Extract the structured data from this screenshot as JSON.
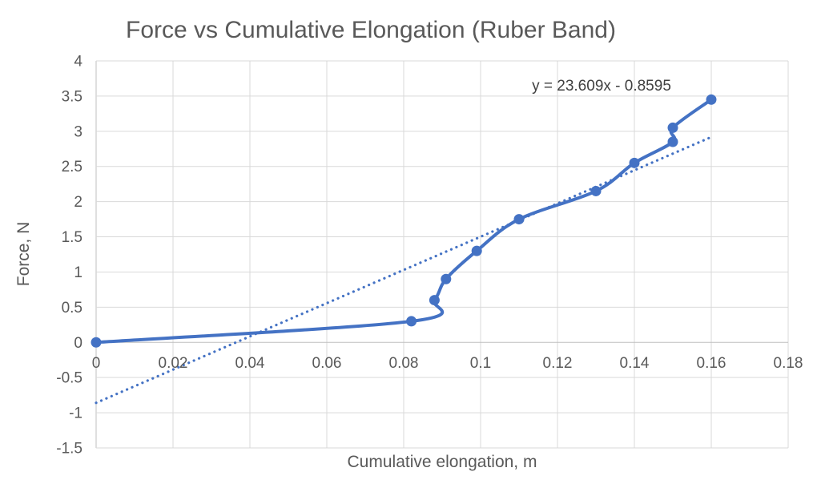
{
  "chart_data": {
    "type": "line",
    "title": "Force vs Cumulative Elongation (Ruber Band)",
    "xlabel": "Cumulative elongation, m",
    "ylabel": "Force, N",
    "xlim": [
      0,
      0.18
    ],
    "ylim": [
      -1.5,
      4
    ],
    "grid": true,
    "legend": false,
    "x_ticks": {
      "values": [
        0,
        0.02,
        0.04,
        0.06,
        0.08,
        0.1,
        0.12,
        0.14,
        0.16,
        0.18
      ],
      "labels": [
        "0",
        "0.02",
        "0.04",
        "0.06",
        "0.08",
        "0.1",
        "0.12",
        "0.14",
        "0.16",
        "0.18"
      ]
    },
    "y_ticks": {
      "values": [
        4,
        3.5,
        3,
        2.5,
        2,
        1.5,
        1,
        0.5,
        0,
        -0.5,
        -1,
        -1.5
      ],
      "labels": [
        "4",
        "3.5",
        "3",
        "2.5",
        "2",
        "1.5",
        "1",
        "0.5",
        "0",
        "-0.5",
        "-1",
        "-1.5"
      ]
    },
    "series": [
      {
        "name": "Force vs cumulative elongation",
        "x": [
          0,
          0.082,
          0.088,
          0.091,
          0.099,
          0.11,
          0.13,
          0.14,
          0.15,
          0.15,
          0.16
        ],
        "y": [
          0,
          0.3,
          0.6,
          0.9,
          1.3,
          1.75,
          2.15,
          2.55,
          2.85,
          3.05,
          3.45
        ],
        "smoothed": true,
        "marker": "circle"
      }
    ],
    "trendline": {
      "equation_label": "y = 23.609x - 0.8595",
      "slope": 23.609,
      "intercept": -0.8595,
      "x_range": [
        0,
        0.16
      ],
      "style": "dotted"
    },
    "colors": {
      "series": "#4472C4",
      "trendline": "#4472C4",
      "gridline": "#D9D9D9",
      "axis_line": "#BFBFBF",
      "tick_text": "#595959",
      "title_text": "#595959",
      "equation_text": "#404040"
    }
  }
}
